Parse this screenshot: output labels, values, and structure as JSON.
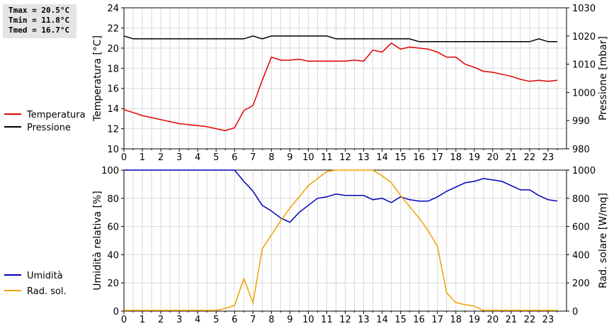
{
  "stats": {
    "tmax": "Tmax = 20.5°C",
    "tmin": "Tmin = 11.8°C",
    "tmed": "Tmed = 16.7°C"
  },
  "chart_data": [
    {
      "type": "line",
      "x_ticks": [
        "0",
        "1",
        "2",
        "3",
        "4",
        "5",
        "6",
        "7",
        "8",
        "9",
        "10",
        "11",
        "12",
        "13",
        "14",
        "15",
        "16",
        "17",
        "18",
        "19",
        "20",
        "21",
        "22",
        "23"
      ],
      "xlim": [
        0,
        24
      ],
      "ylabel_left": "Temperatura [°C]",
      "ylabel_right": "Pressione [mbar]",
      "ylim_left": [
        10,
        24
      ],
      "ylim_right": [
        980,
        1030
      ],
      "y_ticks_left": [
        "10",
        "12",
        "14",
        "16",
        "18",
        "20",
        "22",
        "24"
      ],
      "y_ticks_right": [
        "980",
        "990",
        "1000",
        "1010",
        "1020",
        "1030"
      ],
      "grid": true,
      "legend_position": "left",
      "series": [
        {
          "name": "Temperatura",
          "axis": "left",
          "color": "#e00000",
          "x": [
            0,
            0.5,
            1,
            1.5,
            2,
            2.5,
            3,
            3.5,
            4,
            4.5,
            5,
            5.5,
            6,
            6.5,
            7,
            7.5,
            8,
            8.5,
            9,
            9.5,
            10,
            10.5,
            11,
            11.5,
            12,
            12.5,
            13,
            13.5,
            14,
            14.5,
            15,
            15.5,
            16,
            16.5,
            17,
            17.5,
            18,
            18.5,
            19,
            19.5,
            20,
            20.5,
            21,
            21.5,
            22,
            22.5,
            23,
            23.5
          ],
          "values": [
            13.9,
            13.6,
            13.3,
            13.1,
            12.9,
            12.7,
            12.5,
            12.4,
            12.3,
            12.2,
            12.0,
            11.8,
            12.1,
            13.8,
            14.3,
            16.8,
            19.1,
            18.8,
            18.8,
            18.9,
            18.7,
            18.7,
            18.7,
            18.7,
            18.7,
            18.8,
            18.7,
            19.8,
            19.6,
            20.5,
            19.9,
            20.1,
            20.0,
            19.9,
            19.6,
            19.1,
            19.1,
            18.4,
            18.1,
            17.7,
            17.6,
            17.4,
            17.2,
            16.9,
            16.7,
            16.8,
            16.7,
            16.8
          ]
        },
        {
          "name": "Pressione",
          "axis": "right",
          "color": "#000000",
          "x": [
            0,
            0.5,
            1,
            1.5,
            2,
            2.5,
            3,
            3.5,
            4,
            4.5,
            5,
            5.5,
            6,
            6.5,
            7,
            7.5,
            8,
            8.5,
            9,
            9.5,
            10,
            10.5,
            11,
            11.5,
            12,
            12.5,
            13,
            13.5,
            14,
            14.5,
            15,
            15.5,
            16,
            16.5,
            17,
            17.5,
            18,
            18.5,
            19,
            19.5,
            20,
            20.5,
            21,
            21.5,
            22,
            22.5,
            23,
            23.5
          ],
          "values": [
            1020,
            1019,
            1019,
            1019,
            1019,
            1019,
            1019,
            1019,
            1019,
            1019,
            1019,
            1019,
            1019,
            1019,
            1020,
            1019,
            1020,
            1020,
            1020,
            1020,
            1020,
            1020,
            1020,
            1019,
            1019,
            1019,
            1019,
            1019,
            1019,
            1019,
            1019,
            1019,
            1018,
            1018,
            1018,
            1018,
            1018,
            1018,
            1018,
            1018,
            1018,
            1018,
            1018,
            1018,
            1018,
            1019,
            1018,
            1018
          ]
        }
      ]
    },
    {
      "type": "line",
      "x_ticks": [
        "0",
        "1",
        "2",
        "3",
        "4",
        "5",
        "6",
        "7",
        "8",
        "9",
        "10",
        "11",
        "12",
        "13",
        "14",
        "15",
        "16",
        "17",
        "18",
        "19",
        "20",
        "21",
        "22",
        "23"
      ],
      "xlim": [
        0,
        24
      ],
      "ylabel_left": "Umidità relativa [%]",
      "ylabel_right": "Rad. solare [W/mq]",
      "ylim_left": [
        0,
        100
      ],
      "ylim_right": [
        0,
        1000
      ],
      "y_ticks_left": [
        "0",
        "20",
        "40",
        "60",
        "80",
        "100"
      ],
      "y_ticks_right": [
        "0",
        "200",
        "400",
        "600",
        "800",
        "1000"
      ],
      "grid": true,
      "legend_position": "left",
      "series": [
        {
          "name": "Umidità",
          "axis": "left",
          "color": "#0000c0",
          "x": [
            0,
            1,
            2,
            3,
            4,
            5,
            6,
            6.5,
            7,
            7.5,
            8,
            8.5,
            9,
            9.5,
            10,
            10.5,
            11,
            11.5,
            12,
            12.5,
            13,
            13.5,
            14,
            14.5,
            15,
            15.5,
            16,
            16.5,
            17,
            17.5,
            18,
            18.5,
            19,
            19.5,
            20,
            20.5,
            21,
            21.5,
            22,
            22.5,
            23,
            23.5
          ],
          "values": [
            100,
            100,
            100,
            100,
            100,
            100,
            100,
            92,
            85,
            75,
            71,
            66,
            63,
            70,
            75,
            80,
            81,
            83,
            82,
            82,
            82,
            79,
            80,
            77,
            81,
            79,
            78,
            78,
            81,
            85,
            88,
            91,
            92,
            94,
            93,
            92,
            89,
            86,
            86,
            82,
            79,
            78
          ]
        },
        {
          "name": "Rad. sol.",
          "axis": "right",
          "color": "#f0a000",
          "x": [
            0,
            0.5,
            1,
            1.5,
            2,
            2.5,
            3,
            3.5,
            4,
            4.5,
            5,
            5.5,
            6,
            6.5,
            7,
            7.5,
            8,
            8.5,
            9,
            9.5,
            10,
            10.5,
            11,
            11.5,
            12,
            12.5,
            13,
            13.5,
            14,
            14.5,
            15,
            15.5,
            16,
            16.5,
            17,
            17.5,
            18,
            18.5,
            19,
            19.5,
            20,
            20.5,
            21,
            21.5,
            22,
            22.5,
            23,
            23.5
          ],
          "values": [
            5,
            5,
            5,
            5,
            5,
            5,
            5,
            5,
            5,
            5,
            5,
            20,
            40,
            230,
            60,
            440,
            540,
            640,
            730,
            810,
            890,
            940,
            990,
            1040,
            1040,
            1040,
            1040,
            1010,
            960,
            910,
            820,
            740,
            660,
            570,
            460,
            130,
            60,
            45,
            35,
            5,
            5,
            5,
            5,
            5,
            5,
            5,
            5,
            5
          ]
        }
      ]
    }
  ]
}
